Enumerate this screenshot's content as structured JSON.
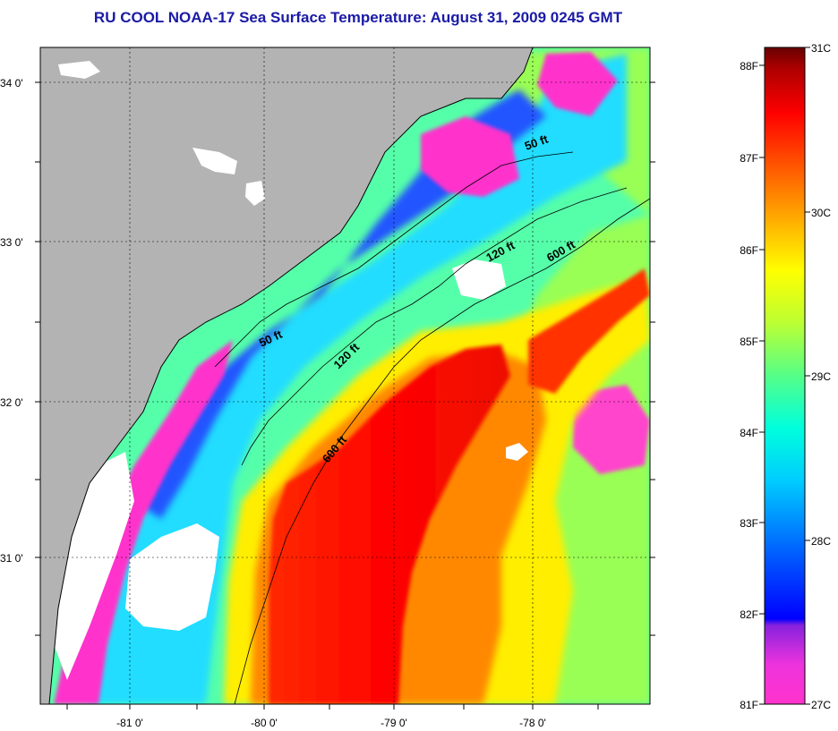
{
  "title": "RU COOL  NOAA-17  Sea Surface Temperature:  August 31, 2009 0245 GMT",
  "map": {
    "lat_labels": [
      "34 0'",
      "33 0'",
      "32 0'",
      "31 0'"
    ],
    "lon_labels": [
      "-81 0'",
      "-80 0'",
      "-79 0'",
      "-78 0'"
    ],
    "isobath_labels": {
      "fifty_north": "50 ft",
      "fifty_south": "50 ft",
      "onetwenty_north": "120 ft",
      "onetwenty_south": "120 ft",
      "sixhundred_north": "600 ft",
      "sixhundred_south": "600 ft"
    },
    "colors": {
      "land": "#b3b3b3",
      "cloud": "#ffffff",
      "coast": "#000000"
    }
  },
  "colorbar": {
    "fahrenheit_labels": [
      "88F",
      "87F",
      "86F",
      "85F",
      "84F",
      "83F",
      "82F",
      "81F"
    ],
    "celsius_labels": [
      "31C",
      "30C",
      "29C",
      "28C",
      "27C"
    ],
    "range_c": [
      27,
      31
    ],
    "range_f": [
      81,
      88
    ],
    "colors_bottom_to_top": [
      "#ff33cc",
      "#aa22dd",
      "#3322ee",
      "#0000ff",
      "#0088ff",
      "#00ffff",
      "#33ff99",
      "#88ff44",
      "#ffff00",
      "#ffaa00",
      "#ff5500",
      "#ff0000",
      "#cc0000",
      "#660000"
    ]
  }
}
